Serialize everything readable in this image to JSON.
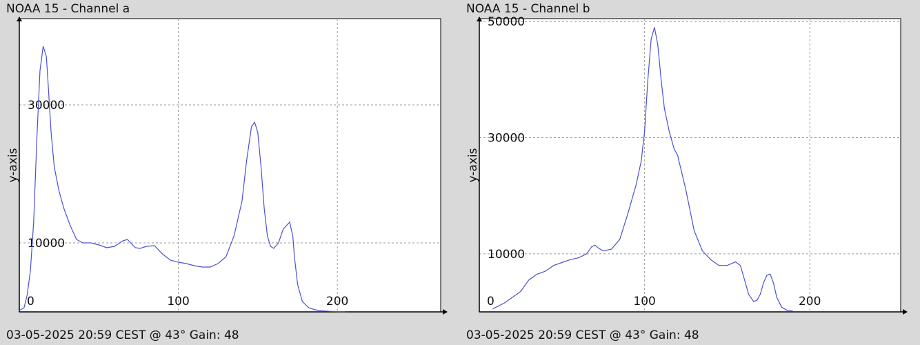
{
  "colors": {
    "background": "#d9d9d9",
    "plot_bg": "#ffffff",
    "series": "#4a4fd6",
    "grid": "#9a9a9a"
  },
  "panels": [
    {
      "title": "NOAA 15 - Channel a",
      "footer": "03-05-2025 20:59 CEST @ 43° Gain: 48"
    },
    {
      "title": "NOAA 15 - Channel b",
      "footer": "03-05-2025 20:59 CEST @ 43° Gain: 48"
    }
  ],
  "chart_data": [
    {
      "type": "line",
      "title": "NOAA 15 - Channel a",
      "ylabel": "y-axis",
      "xlabel": "",
      "xlim": [
        0,
        265
      ],
      "ylim": [
        0,
        42500
      ],
      "x_ticks": [
        0,
        100,
        200
      ],
      "y_ticks": [
        10000,
        30000
      ],
      "grid": true,
      "series": [
        {
          "x": [
            0,
            3,
            5,
            7,
            9,
            11,
            13,
            15,
            17,
            18,
            20,
            22,
            25,
            28,
            32,
            36,
            40,
            45,
            50,
            55,
            60,
            65,
            68,
            70,
            73,
            76,
            80,
            85,
            90,
            95,
            100,
            105,
            110,
            115,
            120,
            125,
            130,
            135,
            140,
            143,
            146,
            148,
            150,
            152,
            154,
            156,
            158,
            160,
            163,
            166,
            170,
            172,
            173,
            175,
            178,
            182,
            186,
            190,
            195,
            200,
            205
          ],
          "y": [
            200,
            600,
            2500,
            6000,
            13000,
            25000,
            35000,
            38500,
            37000,
            33500,
            26000,
            21000,
            17500,
            15000,
            12500,
            10500,
            10000,
            10000,
            9700,
            9300,
            9500,
            10300,
            10500,
            10000,
            9300,
            9200,
            9500,
            9600,
            8400,
            7500,
            7200,
            7000,
            6700,
            6500,
            6500,
            7000,
            8000,
            11000,
            16000,
            22000,
            26800,
            27500,
            26000,
            21000,
            15000,
            11000,
            9500,
            9200,
            10000,
            12000,
            13000,
            11000,
            8000,
            4000,
            1500,
            600,
            300,
            150,
            80,
            50,
            40
          ]
        }
      ]
    },
    {
      "type": "line",
      "title": "NOAA 15 - Channel b",
      "ylabel": "y-axis",
      "xlabel": "",
      "xlim": [
        0,
        255
      ],
      "ylim": [
        0,
        50500
      ],
      "x_ticks": [
        0,
        100,
        200
      ],
      "y_ticks": [
        10000,
        30000,
        50000
      ],
      "grid": true,
      "series": [
        {
          "x": [
            8,
            15,
            20,
            25,
            30,
            35,
            40,
            45,
            50,
            55,
            60,
            65,
            68,
            70,
            72,
            75,
            80,
            85,
            90,
            95,
            98,
            100,
            102,
            104,
            106,
            108,
            110,
            112,
            115,
            118,
            120,
            125,
            130,
            135,
            140,
            145,
            150,
            155,
            158,
            160,
            163,
            166,
            168,
            170,
            172,
            174,
            176,
            178,
            180,
            183,
            186,
            190
          ],
          "y": [
            500,
            1500,
            2500,
            3500,
            5500,
            6500,
            7000,
            8000,
            8500,
            9000,
            9300,
            10000,
            11200,
            11500,
            11000,
            10500,
            10800,
            12500,
            17000,
            22000,
            26000,
            31000,
            40000,
            47000,
            49000,
            46000,
            40000,
            35000,
            31000,
            28000,
            27000,
            21000,
            14000,
            10500,
            9000,
            8000,
            8000,
            8600,
            8000,
            6000,
            3000,
            1800,
            2000,
            3000,
            5000,
            6300,
            6500,
            5000,
            2500,
            800,
            300,
            100
          ]
        }
      ]
    }
  ]
}
